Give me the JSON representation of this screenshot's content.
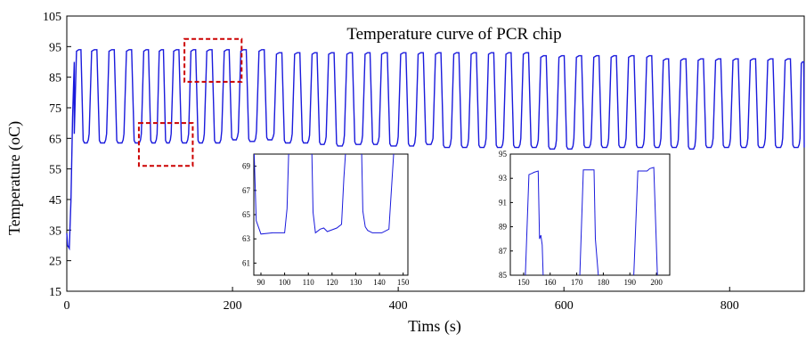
{
  "chart_data": [
    {
      "type": "line",
      "title": "Temperature curve of PCR chip",
      "xlabel": "Tims (s)",
      "ylabel": "Temperature (oC)",
      "xlim": [
        0,
        890
      ],
      "ylim": [
        15,
        105
      ],
      "x_ticks": [
        0,
        200,
        400,
        600,
        800
      ],
      "y_ticks": [
        15,
        25,
        35,
        45,
        55,
        65,
        75,
        85,
        95,
        105
      ],
      "color": "#1a1adc",
      "series": [
        {
          "cycle_starts": [
            0,
            9,
            27,
            48,
            69,
            90,
            109,
            126,
            147,
            166,
            187,
            207,
            229,
            250,
            272,
            293,
            313,
            335,
            357,
            377,
            400,
            421,
            442,
            464,
            485,
            506,
            527,
            548,
            569,
            591,
            612,
            633,
            654,
            675,
            697,
            717,
            738,
            759,
            780,
            801,
            822,
            843,
            864,
            885
          ],
          "denat_temp": [
            29,
            94,
            94,
            94,
            94,
            94,
            94,
            94,
            94,
            94,
            94,
            94,
            94,
            93,
            93,
            93,
            93,
            93,
            93,
            93,
            93,
            93,
            93,
            93,
            93,
            93,
            93,
            93,
            92,
            92,
            92,
            92,
            92,
            92,
            92,
            91,
            91,
            91,
            91,
            91,
            91,
            91,
            91,
            90
          ],
          "anneal_temp": [
            63.5,
            63.5,
            63.5,
            63.5,
            63.5,
            63.5,
            63.5,
            63.5,
            63.5,
            63.5,
            64.5,
            64,
            64.5,
            63.5,
            63.5,
            63,
            62.5,
            63,
            63,
            62.5,
            62.5,
            63,
            62,
            62,
            62,
            62,
            62,
            62,
            61.5,
            61.5,
            62,
            62,
            62,
            62,
            62,
            62,
            61.5,
            62,
            62,
            62,
            62,
            62,
            62,
            62
          ]
        }
      ],
      "annotations": [
        {
          "kind": "dashed-box",
          "color": "#cc0000",
          "x_range": [
            87,
            152
          ],
          "y_range": [
            56,
            70
          ]
        },
        {
          "kind": "dashed-box",
          "color": "#cc0000",
          "x_range": [
            142,
            211
          ],
          "y_range": [
            83.5,
            97.5
          ]
        }
      ]
    },
    {
      "type": "line",
      "title": "",
      "xlim": [
        87,
        152
      ],
      "ylim": [
        60,
        70
      ],
      "x_ticks": [
        90,
        100,
        110,
        120,
        130,
        140,
        150
      ],
      "y_ticks": [
        61,
        63,
        65,
        67,
        69
      ],
      "series": [
        {
          "x": [
            87,
            88,
            90,
            95,
            100,
            101,
            101.7,
            102,
            110,
            111.5,
            112,
            113,
            115,
            116.5,
            118,
            122,
            124,
            125,
            126,
            130,
            132.5,
            133,
            134,
            135,
            137,
            141,
            144,
            146,
            147,
            148,
            152
          ],
          "y": [
            71,
            64.5,
            63.4,
            63.5,
            63.5,
            65.5,
            70,
            71,
            71,
            70,
            65.2,
            63.5,
            63.8,
            63.9,
            63.6,
            63.9,
            64.2,
            68,
            71,
            71,
            70,
            65.3,
            64,
            63.7,
            63.5,
            63.5,
            63.8,
            70,
            71,
            71,
            71
          ]
        }
      ]
    },
    {
      "type": "line",
      "title": "",
      "xlim": [
        145,
        205
      ],
      "ylim": [
        85,
        95
      ],
      "x_ticks": [
        150,
        160,
        170,
        180,
        190,
        200
      ],
      "y_ticks": [
        85,
        87,
        89,
        91,
        93,
        95
      ],
      "series": [
        {
          "x": [
            150.5,
            152,
            153,
            154,
            155.5,
            156,
            156.5,
            157,
            157.5,
            171,
            172.5,
            174,
            176.5,
            177,
            178.5,
            191.3,
            193,
            194,
            196.5,
            197.5,
            199,
            200.5
          ],
          "y": [
            84,
            93.3,
            93.4,
            93.5,
            93.6,
            88,
            88.3,
            87.5,
            84,
            84,
            93.7,
            93.7,
            93.7,
            88,
            84,
            84,
            93.6,
            93.6,
            93.6,
            93.8,
            93.9,
            84
          ]
        }
      ]
    }
  ]
}
